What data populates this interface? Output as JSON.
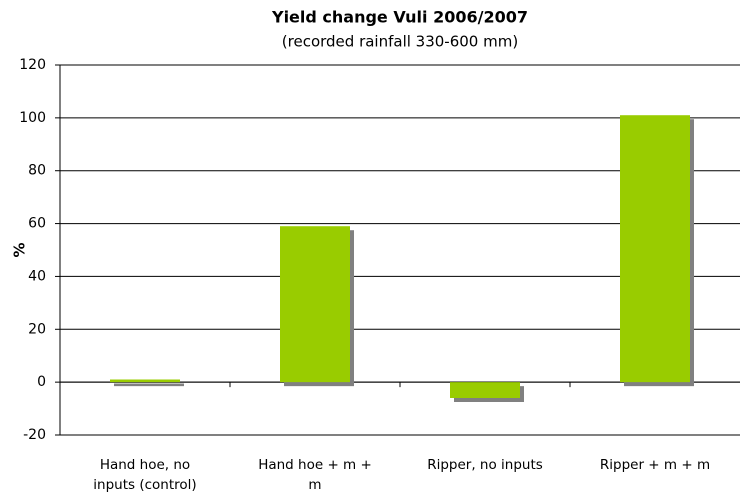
{
  "chart_data": {
    "type": "bar",
    "title": "Yield change Vuli 2006/2007",
    "subtitle": "(recorded rainfall 330-600 mm)",
    "y_label": "%",
    "categories": [
      "Hand hoe, no inputs (control)",
      "Hand hoe + m + m",
      "Ripper, no inputs",
      "Ripper + m + m"
    ],
    "values": [
      1,
      59,
      -6,
      101
    ],
    "color": "#99cc00",
    "ylim": [
      -20,
      120
    ],
    "yticks": [
      -20,
      0,
      20,
      40,
      60,
      80,
      100,
      120
    ],
    "grid": true
  }
}
